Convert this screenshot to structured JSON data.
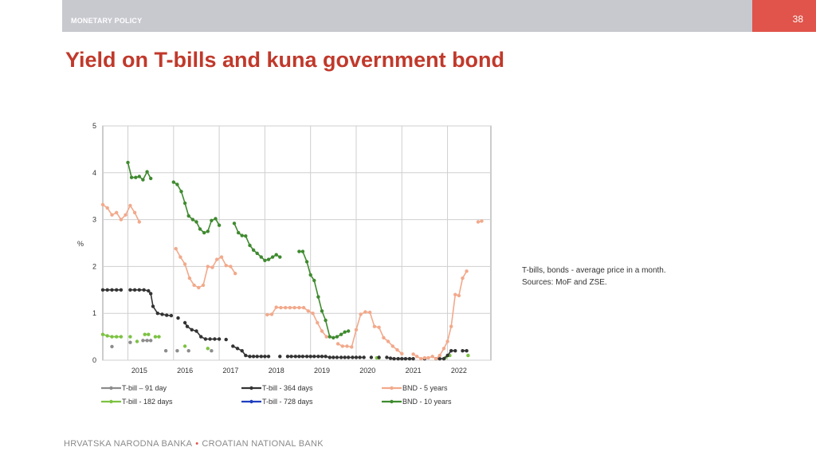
{
  "header": {
    "section": "MONETARY POLICY",
    "page_number": "38"
  },
  "title": "Yield on T-bills and kuna government bond",
  "note": {
    "line1": "T-bills, bonds - average price in a month.",
    "line2": "Sources: MoF and ZSE."
  },
  "footer": {
    "left": "HRVATSKA NARODNA BANKA",
    "right": "CROATIAN NATIONAL BANK"
  },
  "colors": {
    "accent": "#c0392b",
    "topbar": "#c8c9cf",
    "page_box": "#e0544b"
  },
  "chart_data": {
    "type": "line",
    "title": "",
    "xlabel": "",
    "ylabel": "%",
    "xlim": [
      2014.2,
      2022.7
    ],
    "ylim": [
      0,
      5
    ],
    "yticks": [
      0,
      1,
      2,
      3,
      4,
      5
    ],
    "x_tick_labels": [
      "2015",
      "2016",
      "2017",
      "2018",
      "2019",
      "2020",
      "2021",
      "2022"
    ],
    "grid": true,
    "legend_position": "bottom",
    "series": [
      {
        "name": "T-bill –  91 day",
        "color": "#8c8c8c",
        "points": [
          [
            2014.4,
            0.29
          ],
          [
            2014.8,
            0.38
          ],
          [
            2015.08,
            0.42
          ],
          [
            2015.17,
            0.42
          ],
          [
            2015.25,
            0.42
          ],
          [
            2015.58,
            0.2
          ],
          [
            2015.83,
            0.2
          ],
          [
            2016.08,
            0.2
          ],
          [
            2016.58,
            0.2
          ]
        ]
      },
      {
        "name": "T-bill -  182 days",
        "color": "#7cc242",
        "points": [
          [
            2014.2,
            0.55
          ],
          [
            2014.3,
            0.52
          ],
          [
            2014.4,
            0.5
          ],
          [
            2014.5,
            0.5
          ],
          [
            2014.6,
            0.5
          ],
          [
            2014.8,
            0.5
          ],
          [
            2014.95,
            0.4
          ],
          [
            2015.12,
            0.55
          ],
          [
            2015.2,
            0.55
          ],
          [
            2015.35,
            0.5
          ],
          [
            2015.43,
            0.5
          ],
          [
            2016.0,
            0.3
          ],
          [
            2016.5,
            0.25
          ],
          [
            2020.2,
            0.05
          ],
          [
            2020.25,
            0.05
          ],
          [
            2021.7,
            0.05
          ],
          [
            2021.8,
            0.1
          ],
          [
            2022.2,
            0.1
          ]
        ]
      },
      {
        "name": "T-bill - 364 days",
        "color": "#333333",
        "points": [
          [
            2014.2,
            1.5
          ],
          [
            2014.3,
            1.5
          ],
          [
            2014.4,
            1.5
          ],
          [
            2014.5,
            1.5
          ],
          [
            2014.6,
            1.5
          ],
          [
            2014.8,
            1.5
          ],
          [
            2014.9,
            1.5
          ],
          [
            2015.0,
            1.5
          ],
          [
            2015.1,
            1.5
          ],
          [
            2015.2,
            1.48
          ],
          [
            2015.25,
            1.42
          ],
          [
            2015.3,
            1.15
          ],
          [
            2015.4,
            1.0
          ],
          [
            2015.5,
            0.98
          ],
          [
            2015.6,
            0.96
          ],
          [
            2015.7,
            0.95
          ],
          [
            2015.85,
            0.9
          ],
          [
            2016.0,
            0.8
          ],
          [
            2016.05,
            0.72
          ],
          [
            2016.15,
            0.65
          ],
          [
            2016.25,
            0.62
          ],
          [
            2016.35,
            0.5
          ],
          [
            2016.45,
            0.45
          ],
          [
            2016.55,
            0.45
          ],
          [
            2016.65,
            0.45
          ],
          [
            2016.75,
            0.45
          ],
          [
            2016.9,
            0.44
          ],
          [
            2017.05,
            0.3
          ],
          [
            2017.15,
            0.25
          ],
          [
            2017.25,
            0.2
          ],
          [
            2017.33,
            0.1
          ],
          [
            2017.42,
            0.08
          ],
          [
            2017.5,
            0.08
          ],
          [
            2017.58,
            0.08
          ],
          [
            2017.67,
            0.08
          ],
          [
            2017.75,
            0.08
          ],
          [
            2017.83,
            0.08
          ],
          [
            2018.08,
            0.08
          ],
          [
            2018.25,
            0.08
          ],
          [
            2018.33,
            0.08
          ],
          [
            2018.42,
            0.08
          ],
          [
            2018.5,
            0.08
          ],
          [
            2018.58,
            0.08
          ],
          [
            2018.67,
            0.08
          ],
          [
            2018.75,
            0.08
          ],
          [
            2018.83,
            0.08
          ],
          [
            2018.92,
            0.08
          ],
          [
            2019.0,
            0.08
          ],
          [
            2019.08,
            0.08
          ],
          [
            2019.17,
            0.06
          ],
          [
            2019.25,
            0.06
          ],
          [
            2019.33,
            0.06
          ],
          [
            2019.42,
            0.06
          ],
          [
            2019.5,
            0.06
          ],
          [
            2019.58,
            0.06
          ],
          [
            2019.67,
            0.06
          ],
          [
            2019.75,
            0.06
          ],
          [
            2019.83,
            0.06
          ],
          [
            2019.92,
            0.06
          ],
          [
            2020.08,
            0.06
          ],
          [
            2020.25,
            0.06
          ],
          [
            2020.42,
            0.06
          ],
          [
            2020.5,
            0.04
          ],
          [
            2020.58,
            0.03
          ],
          [
            2020.67,
            0.03
          ],
          [
            2020.75,
            0.03
          ],
          [
            2020.83,
            0.03
          ],
          [
            2020.92,
            0.03
          ],
          [
            2021.0,
            0.03
          ],
          [
            2021.25,
            0.03
          ],
          [
            2021.5,
            0.03
          ],
          [
            2021.58,
            0.03
          ],
          [
            2021.67,
            0.03
          ],
          [
            2021.75,
            0.1
          ],
          [
            2021.83,
            0.2
          ],
          [
            2021.92,
            0.2
          ],
          [
            2022.08,
            0.2
          ],
          [
            2022.17,
            0.2
          ]
        ]
      },
      {
        "name": "T-bill - 728 days",
        "color": "#1f3fbf",
        "points": []
      },
      {
        "name": "BND - 5 years",
        "color": "#f2a98b",
        "points": [
          [
            2014.2,
            3.32
          ],
          [
            2014.3,
            3.25
          ],
          [
            2014.4,
            3.1
          ],
          [
            2014.5,
            3.15
          ],
          [
            2014.6,
            3.0
          ],
          [
            2014.7,
            3.1
          ],
          [
            2014.8,
            3.3
          ],
          [
            2014.9,
            3.15
          ],
          [
            2015.0,
            2.95
          ],
          [
            2015.8,
            2.38
          ],
          [
            2015.9,
            2.2
          ],
          [
            2016.0,
            2.05
          ],
          [
            2016.1,
            1.75
          ],
          [
            2016.2,
            1.6
          ],
          [
            2016.3,
            1.55
          ],
          [
            2016.4,
            1.6
          ],
          [
            2016.5,
            2.0
          ],
          [
            2016.6,
            1.98
          ],
          [
            2016.7,
            2.15
          ],
          [
            2016.8,
            2.2
          ],
          [
            2016.9,
            2.02
          ],
          [
            2017.0,
            2.0
          ],
          [
            2017.1,
            1.85
          ],
          [
            2017.8,
            0.97
          ],
          [
            2017.9,
            0.98
          ],
          [
            2018.0,
            1.13
          ],
          [
            2018.1,
            1.12
          ],
          [
            2018.2,
            1.12
          ],
          [
            2018.3,
            1.12
          ],
          [
            2018.4,
            1.12
          ],
          [
            2018.5,
            1.12
          ],
          [
            2018.6,
            1.12
          ],
          [
            2018.7,
            1.05
          ],
          [
            2018.8,
            1.0
          ],
          [
            2018.9,
            0.8
          ],
          [
            2019.0,
            0.62
          ],
          [
            2019.1,
            0.5
          ],
          [
            2019.35,
            0.35
          ],
          [
            2019.45,
            0.3
          ],
          [
            2019.55,
            0.3
          ],
          [
            2019.65,
            0.28
          ],
          [
            2019.75,
            0.65
          ],
          [
            2019.85,
            0.98
          ],
          [
            2019.95,
            1.03
          ],
          [
            2020.05,
            1.02
          ],
          [
            2020.15,
            0.72
          ],
          [
            2020.25,
            0.7
          ],
          [
            2020.35,
            0.48
          ],
          [
            2020.45,
            0.4
          ],
          [
            2020.55,
            0.3
          ],
          [
            2020.65,
            0.22
          ],
          [
            2020.75,
            0.14
          ],
          [
            2021.0,
            0.13
          ],
          [
            2021.08,
            0.08
          ],
          [
            2021.17,
            0.03
          ],
          [
            2021.25,
            0.05
          ],
          [
            2021.33,
            0.05
          ],
          [
            2021.42,
            0.08
          ],
          [
            2021.5,
            0.03
          ],
          [
            2021.58,
            0.1
          ],
          [
            2021.67,
            0.25
          ],
          [
            2021.75,
            0.4
          ],
          [
            2021.83,
            0.72
          ],
          [
            2021.92,
            1.4
          ],
          [
            2022.0,
            1.38
          ],
          [
            2022.08,
            1.75
          ],
          [
            2022.17,
            1.9
          ],
          [
            2022.42,
            2.95
          ],
          [
            2022.5,
            2.97
          ]
        ]
      },
      {
        "name": "BND - 10 years",
        "color": "#3f8a2f",
        "points": [
          [
            2014.75,
            4.22
          ],
          [
            2014.83,
            3.9
          ],
          [
            2014.92,
            3.9
          ],
          [
            2015.0,
            3.92
          ],
          [
            2015.08,
            3.85
          ],
          [
            2015.17,
            4.02
          ],
          [
            2015.25,
            3.88
          ],
          [
            2015.75,
            3.8
          ],
          [
            2015.83,
            3.75
          ],
          [
            2015.92,
            3.6
          ],
          [
            2016.0,
            3.35
          ],
          [
            2016.08,
            3.08
          ],
          [
            2016.17,
            3.0
          ],
          [
            2016.25,
            2.95
          ],
          [
            2016.33,
            2.8
          ],
          [
            2016.42,
            2.72
          ],
          [
            2016.5,
            2.75
          ],
          [
            2016.58,
            2.98
          ],
          [
            2016.67,
            3.02
          ],
          [
            2016.75,
            2.88
          ],
          [
            2017.08,
            2.92
          ],
          [
            2017.17,
            2.72
          ],
          [
            2017.25,
            2.66
          ],
          [
            2017.33,
            2.65
          ],
          [
            2017.42,
            2.45
          ],
          [
            2017.5,
            2.35
          ],
          [
            2017.58,
            2.28
          ],
          [
            2017.67,
            2.2
          ],
          [
            2017.75,
            2.13
          ],
          [
            2017.83,
            2.15
          ],
          [
            2017.92,
            2.2
          ],
          [
            2018.0,
            2.25
          ],
          [
            2018.08,
            2.2
          ],
          [
            2018.5,
            2.32
          ],
          [
            2018.58,
            2.32
          ],
          [
            2018.67,
            2.1
          ],
          [
            2018.75,
            1.82
          ],
          [
            2018.83,
            1.7
          ],
          [
            2018.92,
            1.35
          ],
          [
            2019.0,
            1.05
          ],
          [
            2019.08,
            0.85
          ],
          [
            2019.17,
            0.5
          ],
          [
            2019.25,
            0.48
          ],
          [
            2019.33,
            0.5
          ],
          [
            2019.42,
            0.55
          ],
          [
            2019.5,
            0.6
          ],
          [
            2019.58,
            0.62
          ]
        ]
      }
    ]
  }
}
